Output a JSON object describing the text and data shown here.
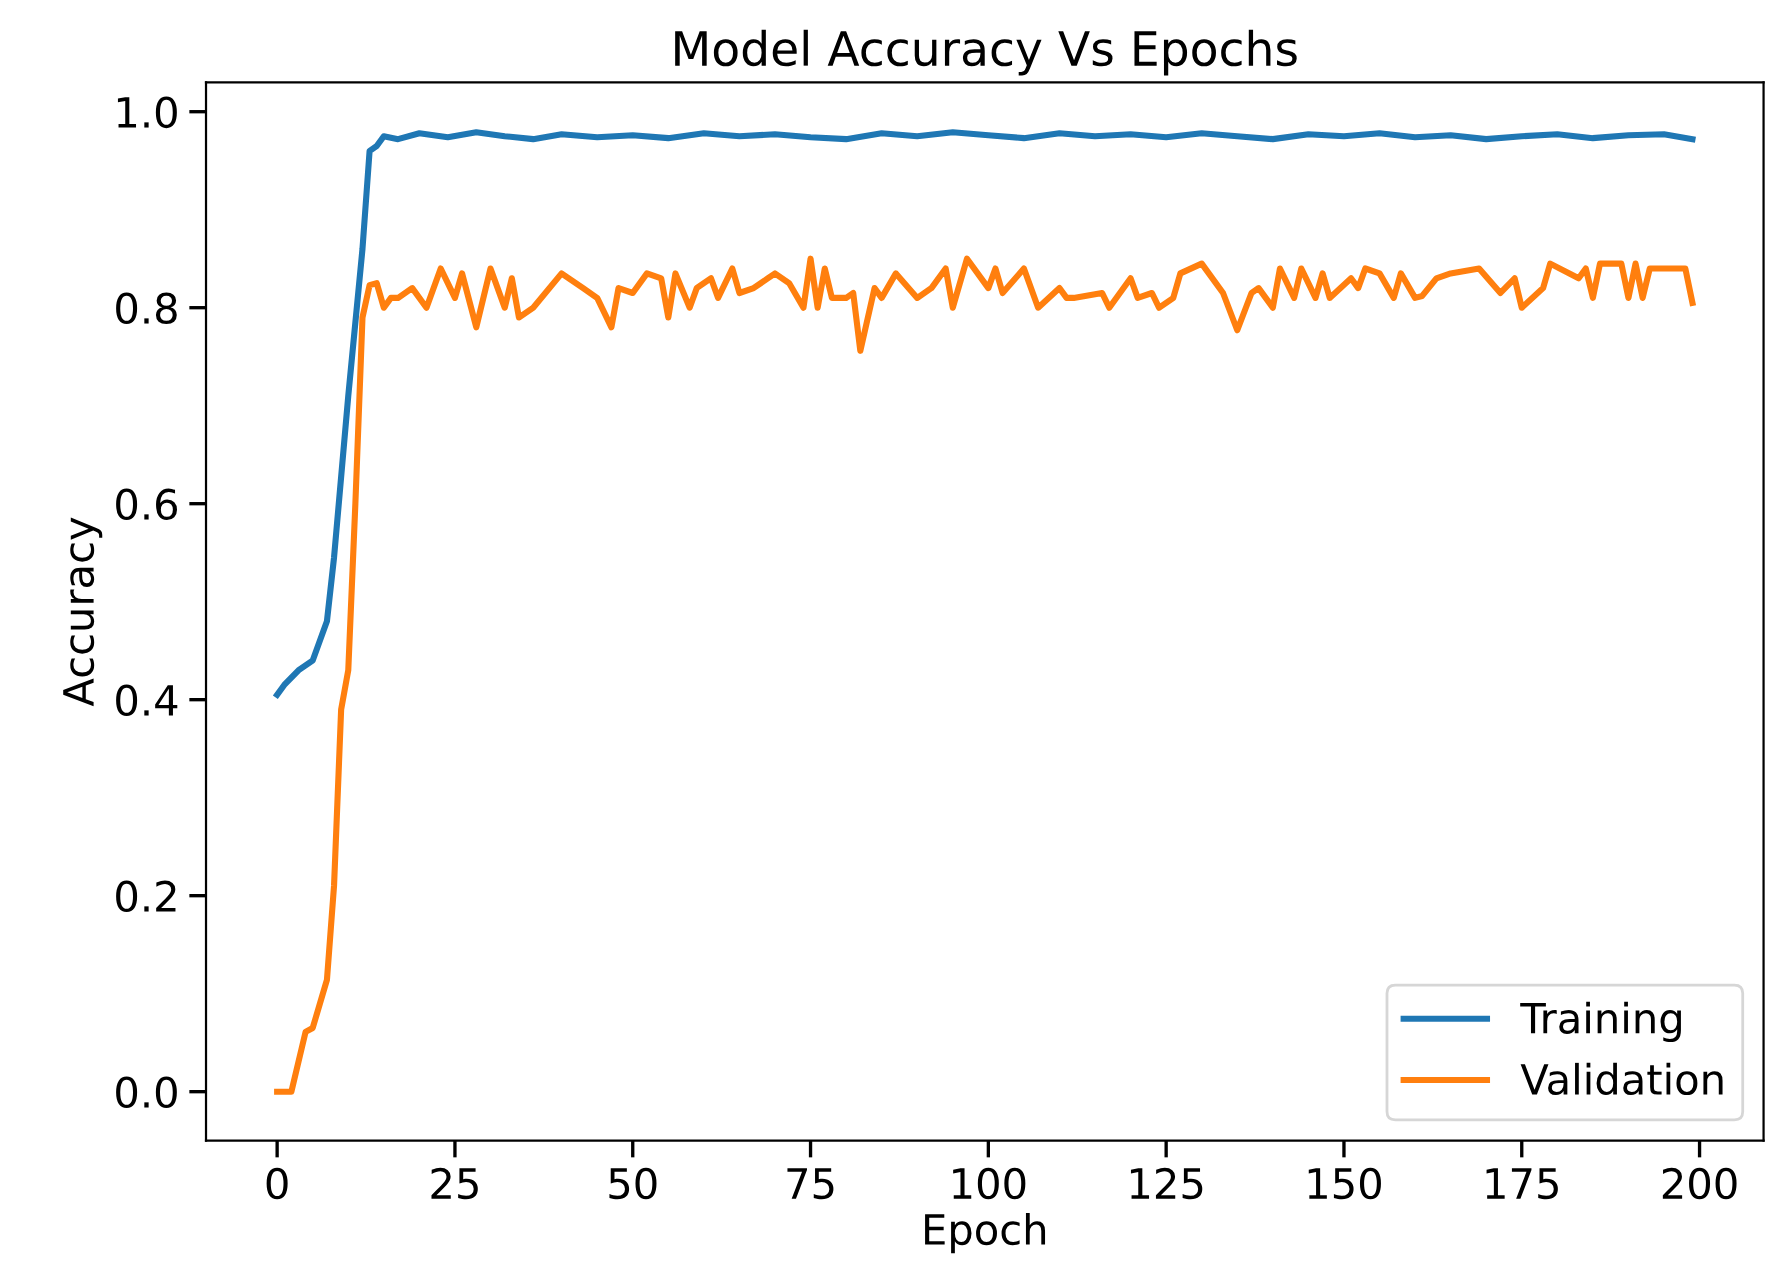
{
  "chart_data": {
    "type": "line",
    "title": "Model Accuracy Vs Epochs",
    "xlabel": "Epoch",
    "ylabel": "Accuracy",
    "xlim": [
      -10,
      209
    ],
    "ylim": [
      -0.05,
      1.03
    ],
    "xticks": [
      0,
      25,
      50,
      75,
      100,
      125,
      150,
      175,
      200
    ],
    "yticks": [
      {
        "value": 0,
        "label": "0.0"
      },
      0.2,
      0.4,
      0.6,
      0.8,
      {
        "value": 1,
        "label": "1.0"
      }
    ],
    "grid": false,
    "legend": "bottom right",
    "marker": "none",
    "line_style": "solid",
    "series": [
      {
        "name": "Training",
        "color": "#1f77b4",
        "x": [
          0,
          1,
          3,
          5,
          7,
          8,
          10,
          12,
          13,
          14,
          15,
          17,
          20,
          24,
          28,
          32,
          36,
          40,
          45,
          50,
          55,
          60,
          65,
          70,
          75,
          80,
          85,
          90,
          95,
          100,
          105,
          110,
          115,
          120,
          125,
          130,
          135,
          140,
          145,
          150,
          155,
          160,
          165,
          170,
          175,
          180,
          185,
          190,
          195,
          199
        ],
        "values": [
          0.405,
          0.415,
          0.43,
          0.44,
          0.48,
          0.545,
          0.71,
          0.86,
          0.96,
          0.965,
          0.975,
          0.972,
          0.978,
          0.974,
          0.979,
          0.975,
          0.972,
          0.977,
          0.974,
          0.976,
          0.973,
          0.978,
          0.975,
          0.977,
          0.974,
          0.972,
          0.978,
          0.975,
          0.979,
          0.976,
          0.973,
          0.978,
          0.975,
          0.977,
          0.974,
          0.978,
          0.975,
          0.972,
          0.977,
          0.975,
          0.978,
          0.974,
          0.976,
          0.972,
          0.975,
          0.977,
          0.973,
          0.976,
          0.977,
          0.972
        ]
      },
      {
        "name": "Validation",
        "color": "#ff7f0e",
        "x": [
          0,
          2,
          4,
          5,
          7,
          8,
          9,
          10,
          11,
          12,
          13,
          14,
          15,
          16,
          17,
          19,
          21,
          23,
          25,
          26,
          28,
          30,
          32,
          33,
          34,
          36,
          40,
          43,
          45,
          47,
          48,
          50,
          52,
          54,
          55,
          56,
          58,
          59,
          61,
          62,
          64,
          65,
          67,
          69,
          70,
          72,
          74,
          75,
          76,
          77,
          78,
          80,
          81,
          82,
          84,
          85,
          87,
          90,
          92,
          94,
          95,
          97,
          100,
          101,
          102,
          105,
          107,
          110,
          111,
          112,
          116,
          117,
          120,
          121,
          123,
          124,
          126,
          127,
          130,
          133,
          135,
          137,
          138,
          140,
          141,
          143,
          144,
          146,
          147,
          148,
          151,
          152,
          153,
          155,
          157,
          158,
          160,
          161,
          163,
          165,
          169,
          172,
          174,
          175,
          178,
          179,
          183,
          184,
          185,
          186,
          189,
          190,
          191,
          192,
          193,
          197,
          198,
          199
        ],
        "values": [
          0.0,
          0.0,
          0.061,
          0.065,
          0.114,
          0.21,
          0.39,
          0.43,
          0.6,
          0.79,
          0.823,
          0.825,
          0.8,
          0.81,
          0.81,
          0.82,
          0.8,
          0.84,
          0.81,
          0.835,
          0.78,
          0.84,
          0.8,
          0.83,
          0.79,
          0.8,
          0.835,
          0.82,
          0.81,
          0.78,
          0.82,
          0.815,
          0.835,
          0.83,
          0.79,
          0.835,
          0.8,
          0.82,
          0.83,
          0.81,
          0.84,
          0.815,
          0.82,
          0.83,
          0.835,
          0.825,
          0.8,
          0.85,
          0.8,
          0.84,
          0.81,
          0.81,
          0.815,
          0.756,
          0.82,
          0.81,
          0.835,
          0.81,
          0.82,
          0.84,
          0.8,
          0.85,
          0.82,
          0.84,
          0.815,
          0.84,
          0.8,
          0.82,
          0.81,
          0.81,
          0.815,
          0.8,
          0.83,
          0.81,
          0.815,
          0.8,
          0.81,
          0.835,
          0.845,
          0.815,
          0.777,
          0.815,
          0.82,
          0.8,
          0.84,
          0.81,
          0.84,
          0.81,
          0.835,
          0.81,
          0.83,
          0.82,
          0.84,
          0.835,
          0.81,
          0.835,
          0.81,
          0.812,
          0.83,
          0.835,
          0.84,
          0.815,
          0.83,
          0.8,
          0.82,
          0.845,
          0.83,
          0.84,
          0.81,
          0.845,
          0.845,
          0.81,
          0.845,
          0.81,
          0.84,
          0.84,
          0.84,
          0.805
        ]
      }
    ]
  }
}
